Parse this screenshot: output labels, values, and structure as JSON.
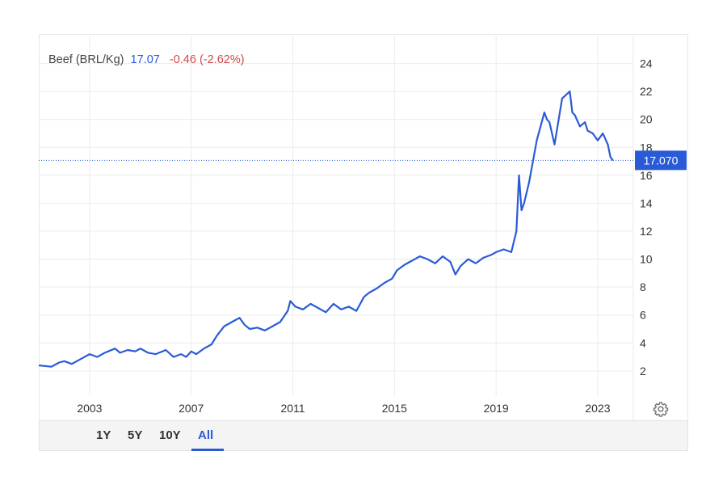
{
  "legend": {
    "name": "Beef (BRL/Kg)",
    "value": "17.07",
    "change": "-0.46 (-2.62%)"
  },
  "current_price_label": "17.070",
  "range_buttons": [
    {
      "label": "1Y",
      "active": false
    },
    {
      "label": "5Y",
      "active": false
    },
    {
      "label": "10Y",
      "active": false
    },
    {
      "label": "All",
      "active": true
    }
  ],
  "colors": {
    "line": "#2a5bd7",
    "change_negative": "#d04a4a",
    "price_badge": "#2a5bd7",
    "grid": "#ececec"
  },
  "icons": {
    "settings": "gear-icon"
  },
  "chart_data": {
    "type": "line",
    "title": "",
    "xlabel": "",
    "ylabel": "",
    "x_ticks": [
      "2003",
      "2007",
      "2011",
      "2015",
      "2019",
      "2023"
    ],
    "y_ticks": [
      2,
      4,
      6,
      8,
      10,
      12,
      14,
      16,
      18,
      20,
      22,
      24
    ],
    "xlim": [
      2001.0,
      2024.4
    ],
    "ylim": [
      0.2,
      26.0
    ],
    "y_axis_position": "right",
    "grid": true,
    "current_value": 17.07,
    "series": [
      {
        "name": "Beef (BRL/Kg)",
        "x": [
          2001.0,
          2001.5,
          2001.8,
          2002.0,
          2002.3,
          2002.7,
          2003.0,
          2003.3,
          2003.6,
          2004.0,
          2004.2,
          2004.5,
          2004.8,
          2005.0,
          2005.3,
          2005.6,
          2006.0,
          2006.3,
          2006.6,
          2006.8,
          2007.0,
          2007.2,
          2007.5,
          2007.8,
          2008.0,
          2008.3,
          2008.6,
          2008.9,
          2009.1,
          2009.3,
          2009.6,
          2009.9,
          2010.2,
          2010.5,
          2010.8,
          2010.9,
          2011.1,
          2011.4,
          2011.7,
          2012.0,
          2012.3,
          2012.6,
          2012.9,
          2013.2,
          2013.5,
          2013.8,
          2014.0,
          2014.3,
          2014.6,
          2014.9,
          2015.1,
          2015.4,
          2015.7,
          2016.0,
          2016.3,
          2016.6,
          2016.9,
          2017.2,
          2017.4,
          2017.6,
          2017.9,
          2018.2,
          2018.5,
          2018.8,
          2019.0,
          2019.3,
          2019.6,
          2019.8,
          2019.9,
          2020.0,
          2020.1,
          2020.3,
          2020.6,
          2020.9,
          2021.0,
          2021.1,
          2021.3,
          2021.6,
          2021.9,
          2022.0,
          2022.1,
          2022.3,
          2022.5,
          2022.6,
          2022.8,
          2023.0,
          2023.2,
          2023.4,
          2023.5,
          2023.6
        ],
        "values": [
          2.4,
          2.3,
          2.6,
          2.7,
          2.5,
          2.9,
          3.2,
          3.0,
          3.3,
          3.6,
          3.3,
          3.5,
          3.4,
          3.6,
          3.3,
          3.2,
          3.5,
          3.0,
          3.2,
          3.0,
          3.4,
          3.2,
          3.6,
          3.9,
          4.5,
          5.2,
          5.5,
          5.8,
          5.3,
          5.0,
          5.1,
          4.9,
          5.2,
          5.5,
          6.3,
          7.0,
          6.6,
          6.4,
          6.8,
          6.5,
          6.2,
          6.8,
          6.4,
          6.6,
          6.3,
          7.3,
          7.6,
          7.9,
          8.3,
          8.6,
          9.2,
          9.6,
          9.9,
          10.2,
          10.0,
          9.7,
          10.2,
          9.8,
          8.9,
          9.5,
          10.0,
          9.7,
          10.1,
          10.3,
          10.5,
          10.7,
          10.5,
          12.0,
          16.0,
          13.5,
          14.0,
          15.5,
          18.5,
          20.5,
          20.0,
          19.8,
          18.2,
          21.5,
          22.0,
          20.5,
          20.3,
          19.5,
          19.8,
          19.2,
          19.0,
          18.5,
          19.0,
          18.2,
          17.3,
          17.07
        ]
      }
    ]
  }
}
